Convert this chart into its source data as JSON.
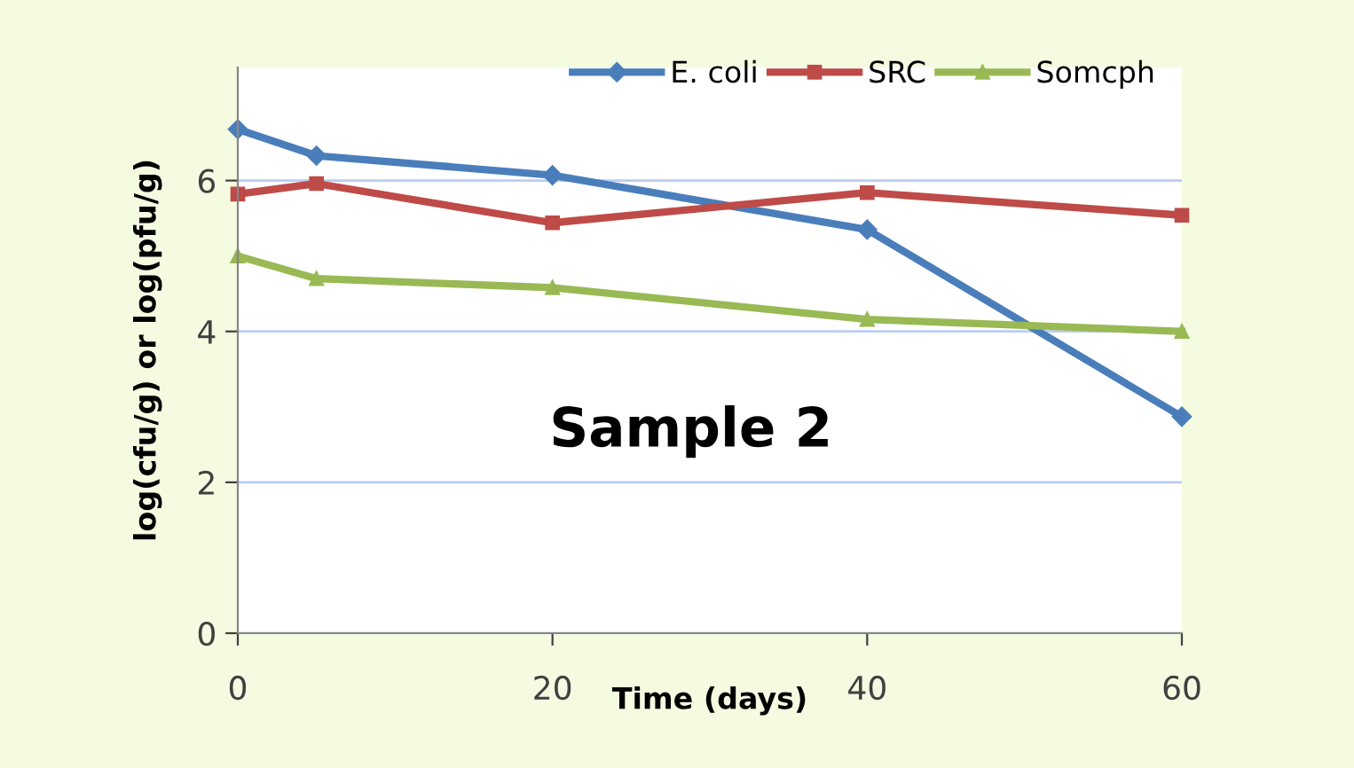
{
  "chart_data": {
    "type": "line",
    "xlabel": "Time (days)",
    "ylabel": "log(cfu/g) or log(pfu/g)",
    "x": [
      0,
      5,
      20,
      40,
      60
    ],
    "series": [
      {
        "name": "E. coli",
        "color": "#4a7ebb",
        "marker": "diamond",
        "values": [
          6.68,
          6.33,
          6.07,
          5.35,
          2.87
        ]
      },
      {
        "name": "SRC",
        "color": "#be4b48",
        "marker": "square",
        "values": [
          5.82,
          5.96,
          5.44,
          5.84,
          5.54
        ]
      },
      {
        "name": "Somcph",
        "color": "#98b954",
        "marker": "triangle",
        "values": [
          5.0,
          4.7,
          4.58,
          4.16,
          4.0
        ]
      }
    ],
    "xlim": [
      0,
      60
    ],
    "xticks": [
      0,
      20,
      40,
      60
    ],
    "ylim": [
      0,
      7.5
    ],
    "yticks": [
      0,
      2,
      4,
      6
    ],
    "grid": "y",
    "legend": "top right",
    "annotations": [
      "Sample 2"
    ]
  }
}
